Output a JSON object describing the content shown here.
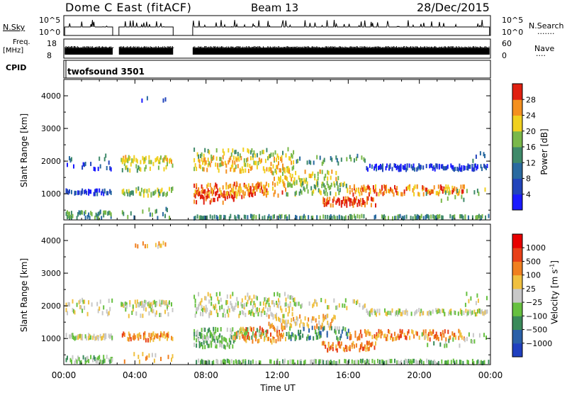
{
  "header": {
    "station": "Dome C East (fitACF)",
    "beam": "Beam 13",
    "date": "28/Dec/2015"
  },
  "strips": {
    "nsky_label": "N.Sky",
    "nsky_ticks": [
      "10^5",
      "10^0"
    ],
    "nsearch_label": "N.Search",
    "nsearch_ticks": [
      "10^5",
      "10^0"
    ],
    "freq_label": "Freq.",
    "freq_unit": "[MHz]",
    "freq_ticks": [
      "18",
      "8"
    ],
    "nave_label": "Nave",
    "nave_ticks": [
      "60",
      "0"
    ],
    "cpid_label": "CPID",
    "cpid_value": "twofsound 3501"
  },
  "chart_data": [
    {
      "type": "heatmap",
      "name": "power",
      "ylabel": "Slant Range [km]",
      "y_ticks": [
        1000,
        2000,
        3000,
        4000
      ],
      "ylim": [
        200,
        4500
      ],
      "x_ticks": [
        "00:00",
        "04:00",
        "08:00",
        "12:00",
        "16:00",
        "20:00",
        "00:00"
      ],
      "xlim_hours": [
        0,
        24
      ],
      "colorbar": {
        "label": "Power [dB]",
        "ticks": [
          4,
          8,
          12,
          16,
          20,
          24,
          28
        ],
        "range": [
          0,
          32
        ],
        "colors": [
          "#1a1aff",
          "#2244bb",
          "#2a6aa0",
          "#3f8a6a",
          "#7ab84a",
          "#f0d020",
          "#f49020",
          "#e02010"
        ]
      },
      "data_gaps_hours": [
        [
          2.75,
          3.1
        ],
        [
          6.15,
          7.25
        ]
      ]
    },
    {
      "type": "heatmap",
      "name": "velocity",
      "ylabel": "Slant Range [km]",
      "y_ticks": [
        1000,
        2000,
        3000,
        4000
      ],
      "ylim": [
        200,
        4500
      ],
      "x_ticks": [
        "00:00",
        "04:00",
        "08:00",
        "12:00",
        "16:00",
        "20:00",
        "00:00"
      ],
      "xlabel": "Time UT",
      "xlim_hours": [
        0,
        24
      ],
      "colorbar": {
        "label": "Velocity [m s^-1]",
        "ticks": [
          "1000",
          "500",
          "100",
          "25",
          "−25",
          "−100",
          "−500",
          "−1000"
        ],
        "colors": [
          "#1f3fbf",
          "#2a60a8",
          "#3a8a5a",
          "#66c040",
          "#c8c8c8",
          "#f0c040",
          "#f08020",
          "#e84018",
          "#e80000"
        ]
      },
      "data_gaps_hours": [
        [
          2.75,
          3.1
        ],
        [
          6.15,
          7.25
        ]
      ]
    }
  ]
}
